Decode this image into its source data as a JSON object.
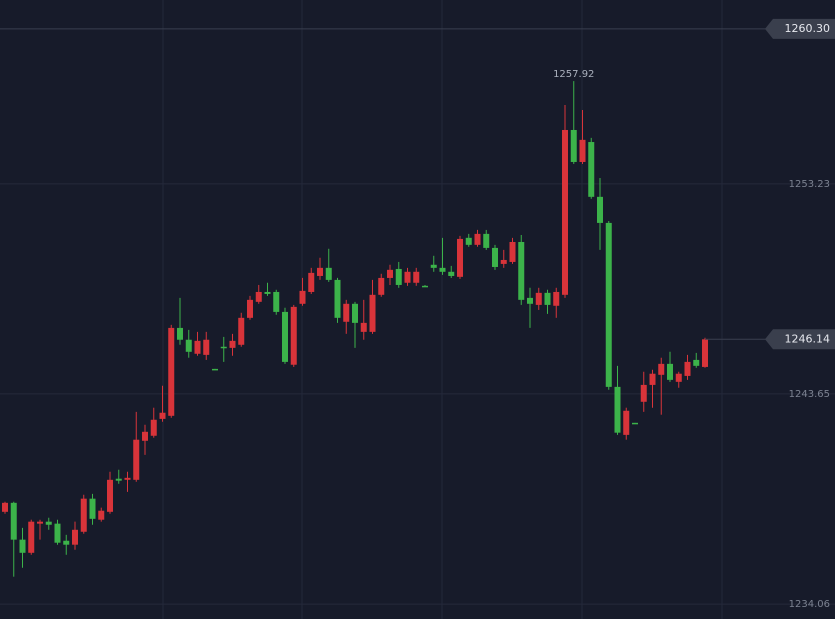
{
  "chart_data": {
    "type": "candlestick",
    "up_color": "#d8343a",
    "down_color": "#3cb34a",
    "ylim": [
      1233.38,
      1261.62
    ],
    "yticks": [
      1234.06,
      1243.65,
      1253.23
    ],
    "grid": true,
    "top_line": {
      "value": 1260.3,
      "label": "1260.30"
    },
    "open": [
      1238.27,
      1238.68,
      1237.0,
      1236.4,
      1237.73,
      1237.82,
      1237.73,
      1236.95,
      1236.77,
      1237.36,
      1238.87,
      1237.91,
      1238.27,
      1239.78,
      1239.73,
      1239.73,
      1241.51,
      1241.74,
      1242.51,
      1242.65,
      1246.66,
      1246.12,
      1245.48,
      1245.43,
      1244.79,
      1245.8,
      1245.75,
      1245.89,
      1247.12,
      1247.85,
      1248.3,
      1248.3,
      1247.39,
      1244.98,
      1247.76,
      1248.3,
      1249.03,
      1249.4,
      1248.85,
      1246.94,
      1247.76,
      1246.48,
      1246.48,
      1248.17,
      1248.94,
      1249.35,
      1248.72,
      1248.72,
      1248.58,
      1249.54,
      1249.4,
      1249.22,
      1248.99,
      1250.77,
      1250.45,
      1250.95,
      1250.31,
      1249.58,
      1249.67,
      1250.58,
      1248.03,
      1247.71,
      1248.26,
      1247.67,
      1248.17,
      1255.69,
      1254.23,
      1255.14,
      1252.64,
      1251.45,
      1243.97,
      1241.78,
      1242.33,
      1243.29,
      1244.06,
      1244.52,
      1245.02,
      1244.2,
      1244.47,
      1245.2,
      1244.88
    ],
    "high": [
      1238.73,
      1238.73,
      1237.54,
      1237.91,
      1237.91,
      1238.0,
      1237.91,
      1237.22,
      1237.82,
      1239.05,
      1239.09,
      1238.46,
      1240.1,
      1240.19,
      1240.1,
      1242.83,
      1242.24,
      1243.02,
      1244.02,
      1246.8,
      1248.03,
      1246.57,
      1246.48,
      1246.48,
      1244.79,
      1246.25,
      1246.39,
      1247.35,
      1248.12,
      1248.62,
      1248.72,
      1248.4,
      1247.58,
      1247.71,
      1248.94,
      1249.4,
      1249.86,
      1250.27,
      1248.94,
      1247.94,
      1247.85,
      1247.94,
      1248.85,
      1249.13,
      1249.54,
      1249.67,
      1249.4,
      1249.4,
      1248.62,
      1249.95,
      1250.77,
      1249.49,
      1250.86,
      1250.95,
      1251.13,
      1251.13,
      1250.45,
      1250.22,
      1250.77,
      1250.9,
      1248.49,
      1248.49,
      1248.4,
      1248.49,
      1256.83,
      1257.92,
      1256.6,
      1255.33,
      1253.5,
      1251.54,
      1244.93,
      1243.02,
      1242.33,
      1244.66,
      1244.75,
      1245.3,
      1245.57,
      1244.66,
      1245.43,
      1245.52,
      1246.21
    ],
    "low": [
      1238.18,
      1235.31,
      1235.72,
      1236.31,
      1237.0,
      1237.45,
      1236.77,
      1236.31,
      1236.54,
      1237.27,
      1237.68,
      1237.82,
      1238.18,
      1239.55,
      1239.18,
      1239.64,
      1240.87,
      1241.65,
      1242.38,
      1242.56,
      1245.89,
      1245.3,
      1245.39,
      1245.2,
      1244.75,
      1245.11,
      1245.39,
      1245.8,
      1247.03,
      1247.76,
      1248.12,
      1247.26,
      1245.02,
      1244.88,
      1247.67,
      1248.21,
      1248.85,
      1248.76,
      1246.89,
      1246.39,
      1245.75,
      1246.12,
      1246.39,
      1248.08,
      1248.62,
      1248.49,
      1248.58,
      1248.58,
      1248.53,
      1249.22,
      1249.08,
      1248.94,
      1248.9,
      1250.36,
      1250.36,
      1250.22,
      1249.31,
      1249.4,
      1249.58,
      1247.71,
      1246.66,
      1247.48,
      1247.3,
      1247.12,
      1248.03,
      1254.14,
      1254.14,
      1252.55,
      1250.22,
      1243.84,
      1241.78,
      1241.56,
      1242.29,
      1242.83,
      1243.02,
      1242.7,
      1244.2,
      1243.93,
      1244.29,
      1244.84,
      1244.84
    ],
    "close": [
      1238.68,
      1237.0,
      1236.4,
      1237.82,
      1237.82,
      1237.68,
      1236.86,
      1236.77,
      1237.45,
      1238.87,
      1237.95,
      1238.32,
      1239.73,
      1239.69,
      1239.82,
      1241.56,
      1241.92,
      1242.47,
      1242.79,
      1246.66,
      1246.12,
      1245.57,
      1246.07,
      1246.12,
      1244.75,
      1245.75,
      1246.07,
      1247.12,
      1247.94,
      1248.3,
      1248.21,
      1247.39,
      1245.11,
      1247.62,
      1248.35,
      1249.17,
      1249.4,
      1248.85,
      1247.12,
      1247.76,
      1246.89,
      1246.89,
      1248.17,
      1248.94,
      1249.31,
      1248.62,
      1249.22,
      1249.22,
      1248.53,
      1249.4,
      1249.22,
      1249.03,
      1250.72,
      1250.45,
      1250.95,
      1250.31,
      1249.44,
      1249.76,
      1250.58,
      1247.94,
      1247.76,
      1248.26,
      1247.71,
      1248.3,
      1255.69,
      1254.23,
      1255.24,
      1252.64,
      1251.45,
      1243.97,
      1241.88,
      1242.88,
      1242.29,
      1244.06,
      1244.57,
      1245.02,
      1244.29,
      1244.57,
      1245.11,
      1244.93,
      1246.14
    ]
  }
}
